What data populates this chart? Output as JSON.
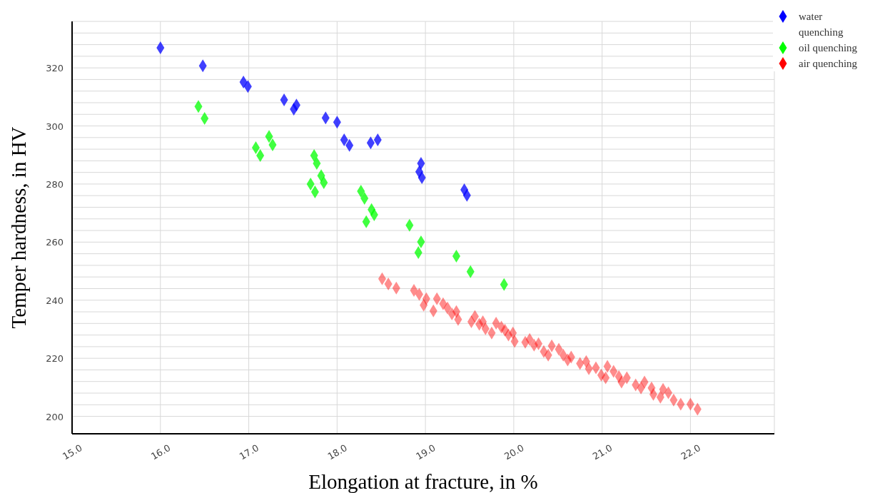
{
  "chart_data": {
    "type": "scatter",
    "xlabel": "Elongation at fracture, in %",
    "ylabel": "Temper hardness, in HV",
    "xlim": [
      15,
      22.95
    ],
    "xticks": [
      {
        "value": 15,
        "label": "15.0"
      },
      {
        "value": 16,
        "label": "16.0"
      },
      {
        "value": 17,
        "label": "17.0"
      },
      {
        "value": 18,
        "label": "18.0"
      },
      {
        "value": 19,
        "label": "19.0"
      },
      {
        "value": 20,
        "label": "20.0"
      },
      {
        "value": 21,
        "label": "21.0"
      },
      {
        "value": 22,
        "label": "22.0"
      }
    ],
    "ylim": [
      194,
      336
    ],
    "yticks": [
      200,
      {
        "value": 204,
        "label": null
      },
      {
        "value": 208,
        "label": null
      },
      {
        "value": 212,
        "label": null
      },
      {
        "value": 216,
        "label": null
      },
      220,
      {
        "value": 224,
        "label": null
      },
      {
        "value": 228,
        "label": null
      },
      {
        "value": 232,
        "label": null
      },
      {
        "value": 236,
        "label": null
      },
      240,
      {
        "value": 244,
        "label": null
      },
      {
        "value": 248,
        "label": null
      },
      {
        "value": 252,
        "label": null
      },
      {
        "value": 256,
        "label": null
      },
      260,
      {
        "value": 264,
        "label": null
      },
      {
        "value": 268,
        "label": null
      },
      {
        "value": 272,
        "label": null
      },
      {
        "value": 276,
        "label": null
      },
      280,
      {
        "value": 284,
        "label": null
      },
      {
        "value": 288,
        "label": null
      },
      {
        "value": 292,
        "label": null
      },
      {
        "value": 296,
        "label": null
      },
      300,
      {
        "value": 304,
        "label": null
      },
      {
        "value": 308,
        "label": null
      },
      {
        "value": 312,
        "label": null
      },
      {
        "value": 316,
        "label": null
      },
      320,
      {
        "value": 324,
        "label": null
      },
      {
        "value": 328,
        "label": null
      },
      {
        "value": 332,
        "label": null
      }
    ],
    "grid": true,
    "legend": "top right",
    "marker": "diamond",
    "series": [
      {
        "name": "water quenching",
        "color": "#0000ff",
        "x": [
          16.0,
          16.48,
          16.94,
          16.99,
          17.4,
          17.51,
          17.54,
          17.87,
          18.0,
          18.08,
          18.14,
          18.38,
          18.46,
          18.93,
          18.95,
          18.96,
          19.44,
          19.47
        ],
        "values": [
          326.9,
          320.7,
          315.1,
          313.6,
          309.0,
          305.8,
          307.2,
          302.8,
          301.3,
          295.2,
          293.3,
          294.2,
          295.2,
          284.2,
          287.1,
          282.2,
          278.0,
          276.1
        ]
      },
      {
        "name": "oil quenching",
        "color": "#00ff00",
        "x": [
          16.43,
          16.5,
          17.08,
          17.13,
          17.23,
          17.27,
          17.74,
          17.77,
          17.82,
          17.85,
          17.7,
          17.75,
          18.27,
          18.31,
          18.39,
          18.42,
          18.33,
          18.82,
          18.95,
          18.92,
          19.35,
          19.51,
          19.89
        ],
        "values": [
          306.7,
          302.6,
          292.5,
          289.8,
          296.4,
          293.5,
          289.8,
          287.1,
          282.9,
          280.5,
          280.0,
          277.3,
          277.5,
          275.1,
          271.2,
          269.4,
          267.0,
          265.8,
          260.1,
          256.4,
          255.2,
          249.8,
          245.4
        ]
      },
      {
        "name": "air quenching",
        "color": "#ff0000",
        "x": [
          18.51,
          18.58,
          18.67,
          18.87,
          18.93,
          19.01,
          18.98,
          19.09,
          19.13,
          19.2,
          19.25,
          19.3,
          19.35,
          19.37,
          19.52,
          19.56,
          19.61,
          19.65,
          19.68,
          19.75,
          19.8,
          19.86,
          19.9,
          19.94,
          19.99,
          20.01,
          20.13,
          20.18,
          20.23,
          20.28,
          20.34,
          20.39,
          20.43,
          20.51,
          20.56,
          20.61,
          20.65,
          20.75,
          20.82,
          20.85,
          20.93,
          20.99,
          21.04,
          21.06,
          21.13,
          21.19,
          21.22,
          21.28,
          21.38,
          21.44,
          21.48,
          21.56,
          21.58,
          21.66,
          21.69,
          21.75,
          21.81,
          21.89,
          22.0,
          22.08
        ],
        "values": [
          247.4,
          245.6,
          244.2,
          243.4,
          242.0,
          240.5,
          238.3,
          236.3,
          240.5,
          238.8,
          237.3,
          235.3,
          236.1,
          233.4,
          232.6,
          234.4,
          231.7,
          232.6,
          230.2,
          228.7,
          232.1,
          230.7,
          229.7,
          228.0,
          228.7,
          225.8,
          225.5,
          226.5,
          224.5,
          225.0,
          222.3,
          221.1,
          224.3,
          223.1,
          221.1,
          219.4,
          220.4,
          218.2,
          218.9,
          216.4,
          216.7,
          214.2,
          213.3,
          217.2,
          215.5,
          213.7,
          211.8,
          213.3,
          210.8,
          209.8,
          211.8,
          209.8,
          207.6,
          206.6,
          209.3,
          208.1,
          205.6,
          204.2,
          204.2,
          202.5
        ]
      }
    ]
  }
}
